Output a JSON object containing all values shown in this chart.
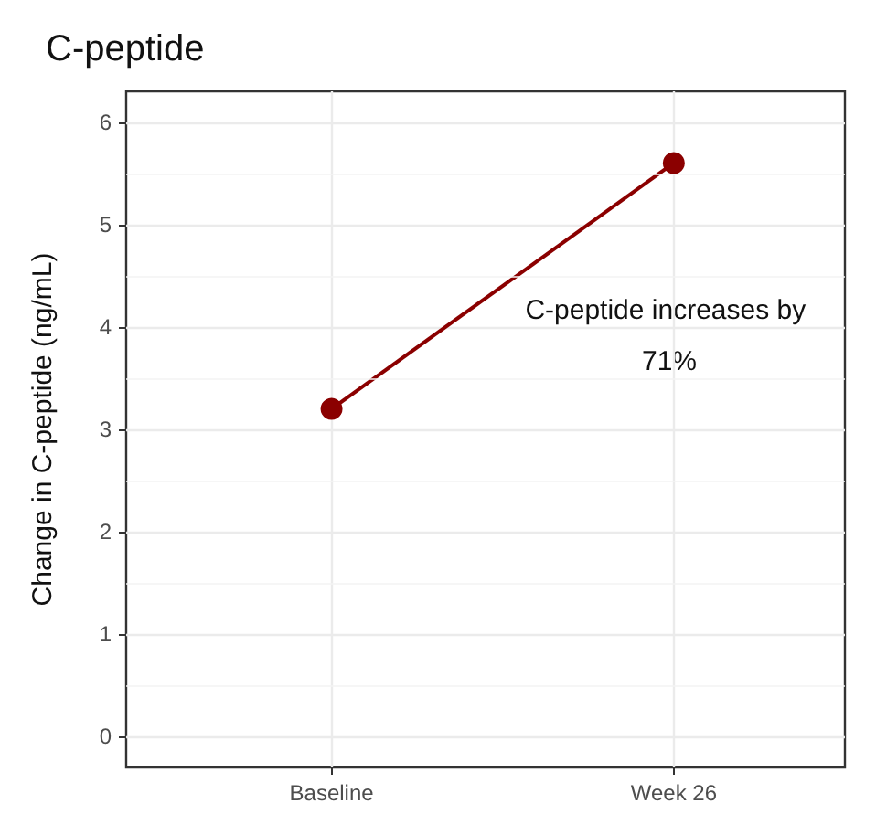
{
  "chart_data": {
    "type": "line",
    "title": "C-peptide",
    "ylabel": "Change in C-peptide (ng/mL)",
    "categories": [
      "Baseline",
      "Week 26"
    ],
    "series": [
      {
        "color": "#8b0000",
        "values": [
          3.2,
          5.6
        ]
      }
    ],
    "ylim": [
      -0.3,
      6.3
    ],
    "yticks": [
      0,
      1,
      2,
      3,
      4,
      5,
      6
    ],
    "grid": true,
    "marker": "circle",
    "line_style": "solid",
    "annotations": [
      "C-peptide increases by 71%"
    ]
  }
}
